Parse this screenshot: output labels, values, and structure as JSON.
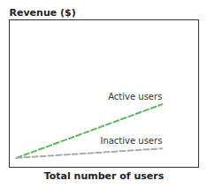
{
  "chart_data": {
    "type": "line",
    "x_label": "Total number of users",
    "y_label": "Revenue ($)",
    "x": [
      0.0,
      1.0
    ],
    "series": [
      {
        "name": "Active users",
        "color": "#5cb85c",
        "line_style": "dashed",
        "values": [
          0.02,
          0.42
        ]
      },
      {
        "name": "Inactive users",
        "color": "#aaaaaa",
        "line_style": "dashed",
        "values": [
          0.02,
          0.09
        ]
      }
    ],
    "xlim": [
      -0.05,
      1.25
    ],
    "ylim": [
      -0.05,
      1.05
    ],
    "tick_labels": false,
    "grid": false
  }
}
